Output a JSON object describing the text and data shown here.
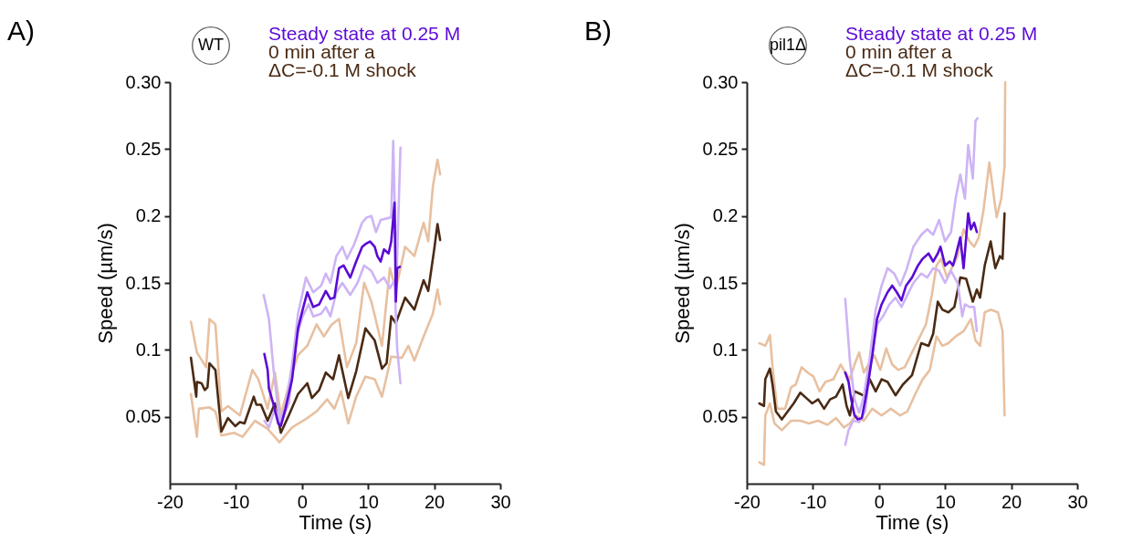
{
  "chart_data": [
    {
      "type": "line",
      "annotations": [
        "A)",
        "WT"
      ],
      "xlabel": "Time (s)",
      "ylabel": "Speed (µm/s)",
      "xlim": [
        -20,
        30
      ],
      "xticks": [
        -20,
        -10,
        0,
        10,
        20,
        30
      ],
      "ylim": [
        0,
        0.3
      ],
      "yticks": [
        0.05,
        0.1,
        0.15,
        0.2,
        0.25,
        {
          "value": 0.3,
          "label": "0.30"
        }
      ],
      "series": [
        {
          "color": "#e8c0a0",
          "x": [
            -16.8,
            -15.9,
            -14.5,
            -14.0,
            -13.1,
            -12.2,
            -11.2,
            -9.4,
            -7.5,
            -6.6,
            -5.2,
            -4.1,
            -3.2,
            -1.5,
            -0.6,
            0.8,
            2.2,
            3.3,
            4.5,
            5.6,
            6.8,
            8.2,
            9.4,
            10.5,
            12.1,
            13.3,
            14.2,
            15.6,
            17.0,
            18.4,
            19.1,
            19.8,
            20.5,
            20.9
          ],
          "values": [
            0.121,
            0.098,
            0.087,
            0.123,
            0.119,
            0.054,
            0.058,
            0.051,
            0.085,
            0.078,
            0.056,
            0.083,
            0.051,
            0.083,
            0.096,
            0.103,
            0.119,
            0.11,
            0.119,
            0.123,
            0.087,
            0.105,
            0.15,
            0.136,
            0.103,
            0.161,
            0.145,
            0.177,
            0.17,
            0.195,
            0.181,
            0.222,
            0.242,
            0.231
          ]
        },
        {
          "color": "#e8c0a0",
          "x": [
            -16.8,
            -15.9,
            -15.6,
            -14.0,
            -13.1,
            -12.2,
            -10.3,
            -9.0,
            -7.1,
            -5.2,
            -3.4,
            -1.5,
            0.8,
            2.2,
            3.8,
            4.9,
            5.9,
            7.0,
            8.2,
            9.6,
            11.0,
            12.1,
            13.5,
            15.1,
            16.1,
            17.0,
            18.4,
            19.8,
            20.5,
            20.9
          ],
          "values": [
            0.067,
            0.035,
            0.056,
            0.057,
            0.054,
            0.036,
            0.038,
            0.035,
            0.047,
            0.041,
            0.031,
            0.042,
            0.049,
            0.054,
            0.063,
            0.056,
            0.069,
            0.045,
            0.065,
            0.08,
            0.078,
            0.065,
            0.095,
            0.094,
            0.103,
            0.092,
            0.11,
            0.127,
            0.145,
            0.134
          ]
        },
        {
          "name": "0 min after a ΔC=-0.1 M shock",
          "color": "#4a2a14",
          "x": [
            -16.8,
            -16.0,
            -15.9,
            -15.2,
            -14.7,
            -14.3,
            -14.0,
            -13.1,
            -12.2,
            -11.2,
            -10.1,
            -9.4,
            -8.7,
            -7.3,
            -6.9,
            -6.2,
            -5.2,
            -4.1,
            -3.2,
            -2.0,
            -0.6,
            0.8,
            1.5,
            2.6,
            3.6,
            4.7,
            5.6,
            7.0,
            8.2,
            9.6,
            11.0,
            12.1,
            12.8,
            13.5,
            14.2,
            15.6,
            17.0,
            18.4,
            19.1,
            20.0,
            20.5,
            20.9
          ],
          "values": [
            0.094,
            0.065,
            0.076,
            0.075,
            0.07,
            0.072,
            0.09,
            0.085,
            0.039,
            0.049,
            0.043,
            0.046,
            0.045,
            0.065,
            0.059,
            0.059,
            0.047,
            0.06,
            0.038,
            0.051,
            0.067,
            0.075,
            0.064,
            0.07,
            0.083,
            0.078,
            0.096,
            0.064,
            0.084,
            0.116,
            0.107,
            0.086,
            0.09,
            0.125,
            0.12,
            0.139,
            0.13,
            0.152,
            0.144,
            0.175,
            0.194,
            0.182
          ]
        },
        {
          "color": "#cdb4f5",
          "x": [
            -5.8,
            -5.0,
            -4.3,
            -3.4,
            -2.5,
            -1.5,
            -0.6,
            0.6,
            1.7,
            2.9,
            3.6,
            4.3,
            5.2,
            6.1,
            6.8,
            7.9,
            9.1,
            9.8,
            10.5,
            11.2,
            11.9,
            13.5,
            13.8,
            14.3,
            14.9
          ],
          "values": [
            0.141,
            0.123,
            0.085,
            0.047,
            0.058,
            0.089,
            0.127,
            0.154,
            0.143,
            0.148,
            0.157,
            0.15,
            0.17,
            0.177,
            0.168,
            0.179,
            0.195,
            0.199,
            0.2,
            0.188,
            0.197,
            0.199,
            0.256,
            0.154,
            0.251
          ]
        },
        {
          "color": "#cdb4f5",
          "x": [
            -5.7,
            -5.0,
            -4.1,
            -3.2,
            -2.0,
            -0.8,
            0.1,
            1.0,
            1.7,
            2.9,
            3.6,
            4.3,
            5.2,
            6.1,
            7.3,
            8.4,
            9.4,
            10.5,
            11.4,
            12.4,
            13.3,
            14.0,
            14.4,
            14.9
          ],
          "values": [
            0.047,
            0.042,
            0.056,
            0.045,
            0.06,
            0.11,
            0.125,
            0.134,
            0.125,
            0.127,
            0.132,
            0.125,
            0.143,
            0.15,
            0.141,
            0.15,
            0.163,
            0.159,
            0.15,
            0.154,
            0.146,
            0.152,
            0.101,
            0.075
          ]
        },
        {
          "name": "Steady state at 0.25 M",
          "color": "#5b0ad6",
          "x": [
            -5.7,
            -5.2,
            -5.0,
            -4.3,
            -3.6,
            -3.2,
            -2.5,
            -1.5,
            -0.6,
            0.1,
            0.8,
            1.7,
            2.6,
            3.6,
            4.3,
            4.9,
            5.6,
            6.3,
            7.3,
            8.2,
            9.1,
            9.6,
            10.3,
            11.0,
            11.4,
            11.9,
            12.4,
            13.1,
            13.5,
            14.0,
            14.2,
            14.4,
            14.8
          ],
          "values": [
            0.097,
            0.085,
            0.071,
            0.059,
            0.045,
            0.043,
            0.056,
            0.078,
            0.116,
            0.13,
            0.143,
            0.132,
            0.134,
            0.144,
            0.138,
            0.139,
            0.161,
            0.163,
            0.154,
            0.166,
            0.177,
            0.179,
            0.181,
            0.177,
            0.17,
            0.166,
            0.175,
            0.172,
            0.181,
            0.21,
            0.136,
            0.161,
            0.162
          ]
        }
      ]
    },
    {
      "type": "line",
      "annotations": [
        "B)",
        "pil1Δ"
      ],
      "xlabel": "Time (s)",
      "ylabel": "Speed (µm/s)",
      "xlim": [
        -20,
        30
      ],
      "xticks": [
        -20,
        -10,
        0,
        10,
        20,
        30
      ],
      "ylim": [
        0,
        0.3
      ],
      "yticks": [
        0.05,
        0.1,
        0.15,
        0.2,
        0.25,
        {
          "value": 0.3,
          "label": "0.30"
        }
      ],
      "series": [
        {
          "color": "#e8c0a0",
          "x": [
            -18.1,
            -17.2,
            -16.5,
            -16.1,
            -15.4,
            -14.2,
            -13.3,
            -12.6,
            -11.7,
            -10.8,
            -9.9,
            -9.0,
            -8.1,
            -6.9,
            -5.8,
            -5.1,
            -4.4,
            -3.7,
            -3.0,
            -2.3,
            -1.6,
            -0.7,
            0.2,
            1.1,
            2.0,
            2.9,
            3.9,
            4.8,
            5.9,
            7.1,
            8.0,
            8.7,
            9.4,
            10.3,
            11.2,
            11.9,
            12.8,
            13.7,
            14.4,
            15.1,
            15.8,
            16.7,
            17.8,
            18.5,
            19.0,
            19.1
          ],
          "values": [
            0.105,
            0.103,
            0.111,
            0.087,
            0.056,
            0.056,
            0.072,
            0.074,
            0.087,
            0.083,
            0.08,
            0.069,
            0.076,
            0.078,
            0.089,
            0.083,
            0.078,
            0.089,
            0.098,
            0.083,
            0.089,
            0.096,
            0.085,
            0.101,
            0.089,
            0.085,
            0.087,
            0.096,
            0.107,
            0.119,
            0.141,
            0.163,
            0.168,
            0.154,
            0.163,
            0.17,
            0.19,
            0.181,
            0.177,
            0.184,
            0.204,
            0.24,
            0.199,
            0.213,
            0.237,
            0.3
          ]
        },
        {
          "color": "#e8c0a0",
          "x": [
            -18.1,
            -17.4,
            -17.2,
            -16.5,
            -15.8,
            -14.7,
            -13.3,
            -11.9,
            -10.6,
            -9.2,
            -7.8,
            -6.5,
            -5.3,
            -4.4,
            -3.5,
            -2.3,
            -1.0,
            0.4,
            1.8,
            3.2,
            4.3,
            5.5,
            6.6,
            7.7,
            8.7,
            9.6,
            10.5,
            11.6,
            12.8,
            13.9,
            14.6,
            15.3,
            16.0,
            16.9,
            18.0,
            18.7,
            19.0
          ],
          "values": [
            0.016,
            0.014,
            0.051,
            0.06,
            0.045,
            0.04,
            0.047,
            0.047,
            0.045,
            0.047,
            0.044,
            0.049,
            0.042,
            0.045,
            0.051,
            0.047,
            0.056,
            0.051,
            0.056,
            0.051,
            0.054,
            0.067,
            0.078,
            0.085,
            0.11,
            0.103,
            0.105,
            0.11,
            0.114,
            0.123,
            0.107,
            0.103,
            0.128,
            0.13,
            0.128,
            0.114,
            0.051
          ]
        },
        {
          "name": "0 min after a ΔC=-0.1 M shock",
          "color": "#4a2a14",
          "x": [
            -18.1,
            -17.4,
            -17.2,
            -16.5,
            -16.1,
            -15.6,
            -14.7,
            -13.8,
            -12.9,
            -11.9,
            -11.0,
            -10.1,
            -9.2,
            -8.3,
            -7.4,
            -6.5,
            -5.5,
            -4.9,
            -4.4,
            -3.7,
            -2.8,
            -2.1,
            -1.4,
            -0.5,
            0.4,
            1.3,
            2.5,
            3.6,
            5.0,
            6.4,
            7.5,
            8.2,
            8.9,
            9.6,
            10.5,
            11.4,
            12.3,
            13.2,
            14.2,
            14.8,
            15.3,
            16.0,
            16.9,
            17.6,
            18.3,
            18.7,
            19.0
          ],
          "values": [
            0.06,
            0.058,
            0.078,
            0.086,
            0.074,
            0.054,
            0.048,
            0.054,
            0.06,
            0.068,
            0.064,
            0.06,
            0.063,
            0.056,
            0.063,
            0.065,
            0.074,
            0.058,
            0.051,
            0.069,
            0.067,
            0.065,
            0.078,
            0.069,
            0.078,
            0.076,
            0.066,
            0.074,
            0.081,
            0.105,
            0.103,
            0.112,
            0.136,
            0.13,
            0.128,
            0.132,
            0.154,
            0.153,
            0.136,
            0.145,
            0.139,
            0.163,
            0.181,
            0.161,
            0.17,
            0.168,
            0.202
          ]
        },
        {
          "color": "#cdb4f5",
          "x": [
            -5.1,
            -4.4,
            -3.7,
            -3.0,
            -2.3,
            -1.4,
            -0.5,
            0.4,
            1.3,
            2.3,
            3.2,
            4.1,
            5.2,
            6.4,
            7.3,
            8.2,
            9.1,
            10.0,
            10.9,
            11.6,
            12.3,
            13.0,
            13.5,
            14.2,
            14.6,
            14.9
          ],
          "values": [
            0.138,
            0.092,
            0.063,
            0.053,
            0.065,
            0.094,
            0.13,
            0.148,
            0.161,
            0.157,
            0.148,
            0.159,
            0.177,
            0.186,
            0.19,
            0.186,
            0.197,
            0.181,
            0.188,
            0.213,
            0.231,
            0.213,
            0.253,
            0.228,
            0.271,
            0.273
          ]
        },
        {
          "color": "#cdb4f5",
          "x": [
            -5.1,
            -4.6,
            -3.9,
            -3.0,
            -2.1,
            -1.2,
            -0.3,
            0.6,
            1.6,
            2.5,
            3.4,
            4.3,
            5.2,
            6.4,
            7.3,
            8.2,
            9.1,
            10.0,
            10.9,
            11.9,
            12.6,
            13.0,
            13.7,
            14.4,
            14.8
          ],
          "values": [
            0.029,
            0.04,
            0.047,
            0.046,
            0.054,
            0.092,
            0.119,
            0.125,
            0.134,
            0.139,
            0.132,
            0.141,
            0.15,
            0.157,
            0.154,
            0.161,
            0.159,
            0.15,
            0.159,
            0.15,
            0.125,
            0.134,
            0.132,
            0.132,
            0.114
          ]
        },
        {
          "name": "Steady state at 0.25 M",
          "color": "#5b0ad6",
          "x": [
            -5.1,
            -4.6,
            -4.2,
            -3.7,
            -3.2,
            -2.6,
            -1.9,
            -1.0,
            -0.3,
            0.4,
            1.3,
            2.0,
            2.7,
            3.4,
            4.1,
            5.0,
            5.9,
            6.6,
            7.5,
            8.2,
            8.9,
            9.3,
            10.0,
            10.7,
            11.2,
            11.6,
            12.3,
            12.8,
            13.5,
            13.9,
            14.4,
            14.8
          ],
          "values": [
            0.083,
            0.076,
            0.063,
            0.051,
            0.048,
            0.049,
            0.067,
            0.096,
            0.123,
            0.134,
            0.143,
            0.148,
            0.143,
            0.137,
            0.148,
            0.154,
            0.163,
            0.168,
            0.172,
            0.166,
            0.172,
            0.177,
            0.163,
            0.166,
            0.163,
            0.17,
            0.184,
            0.161,
            0.202,
            0.19,
            0.195,
            0.188
          ]
        }
      ]
    }
  ]
}
